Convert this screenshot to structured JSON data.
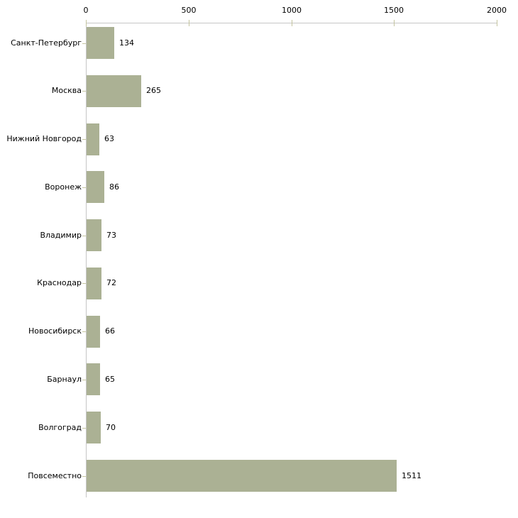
{
  "chart_data": {
    "type": "bar",
    "orientation": "horizontal",
    "title": "",
    "xlabel": "",
    "ylabel": "",
    "categories": [
      "Санкт-Петербург",
      "Москва",
      "Нижний Новгород",
      "Воронеж",
      "Владимир",
      "Краснодар",
      "Новосибирск",
      "Барнаул",
      "Волгоград",
      "Повсеместно"
    ],
    "values": [
      134,
      265,
      63,
      86,
      73,
      72,
      66,
      65,
      70,
      1511
    ],
    "value_labels": [
      "134",
      "265",
      "63",
      "86",
      "73",
      "72",
      "66",
      "65",
      "70",
      "1511"
    ],
    "x_axis": {
      "position": "top",
      "min": 0,
      "max": 2000,
      "ticks": [
        0,
        500,
        1000,
        1500,
        2000
      ],
      "tick_labels": [
        "0",
        "500",
        "1000",
        "1500",
        "2000"
      ]
    },
    "grid": false,
    "legend": null,
    "colors": {
      "bar_fill": "#abb194",
      "axis_line": "#c6c6c6",
      "tick_mark": "#c5c5a0",
      "text": "#000000",
      "background": "#ffffff"
    }
  }
}
